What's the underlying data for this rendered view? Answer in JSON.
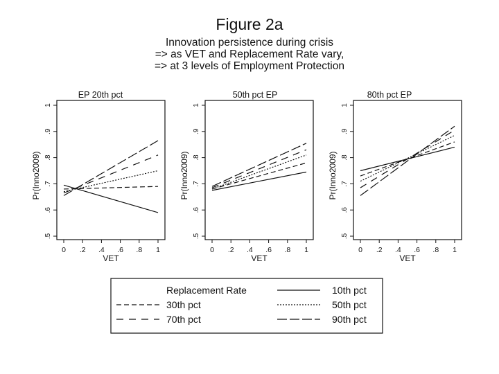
{
  "figure": {
    "title": "Figure 2a",
    "subtitle": [
      "Innovation persistence during crisis",
      "=> as VET and Replacement Rate vary,",
      "=> at 3 levels of Employment Protection"
    ]
  },
  "chart_data": [
    {
      "type": "line",
      "title": "EP 20th pct",
      "xlabel": "VET",
      "ylabel": "Pr(Inno2009)",
      "xlim": [
        0,
        1
      ],
      "ylim": [
        0.5,
        1
      ],
      "xticks": [
        "0",
        ".2",
        ".4",
        ".6",
        ".8",
        "1"
      ],
      "yticks": [
        ".5",
        ".6",
        ".7",
        ".8",
        ".9",
        "1"
      ],
      "x": [
        0,
        1
      ],
      "series": [
        {
          "name": "10th pct",
          "values": [
            0.695,
            0.59
          ]
        },
        {
          "name": "30th pct",
          "values": [
            0.68,
            0.69
          ]
        },
        {
          "name": "50th pct",
          "values": [
            0.67,
            0.75
          ]
        },
        {
          "name": "70th pct",
          "values": [
            0.665,
            0.81
          ]
        },
        {
          "name": "90th pct",
          "values": [
            0.655,
            0.865
          ]
        }
      ]
    },
    {
      "type": "line",
      "title": "50th pct EP",
      "xlabel": "VET",
      "ylabel": "Pr(Inno2009)",
      "xlim": [
        0,
        1
      ],
      "ylim": [
        0.5,
        1
      ],
      "xticks": [
        "0",
        ".2",
        ".4",
        ".6",
        ".8",
        "1"
      ],
      "yticks": [
        ".5",
        ".6",
        ".7",
        ".8",
        ".9",
        "1"
      ],
      "x": [
        0,
        1
      ],
      "series": [
        {
          "name": "10th pct",
          "values": [
            0.675,
            0.745
          ]
        },
        {
          "name": "30th pct",
          "values": [
            0.68,
            0.78
          ]
        },
        {
          "name": "50th pct",
          "values": [
            0.68,
            0.81
          ]
        },
        {
          "name": "70th pct",
          "values": [
            0.685,
            0.83
          ]
        },
        {
          "name": "90th pct",
          "values": [
            0.69,
            0.855
          ]
        }
      ]
    },
    {
      "type": "line",
      "title": "80th pct EP",
      "xlabel": "VET",
      "ylabel": "Pr(Inno2009)",
      "xlim": [
        0,
        1
      ],
      "ylim": [
        0.5,
        1
      ],
      "xticks": [
        "0",
        ".2",
        ".4",
        ".6",
        ".8",
        "1"
      ],
      "yticks": [
        ".5",
        ".6",
        ".7",
        ".8",
        ".9",
        "1"
      ],
      "x": [
        0,
        1
      ],
      "series": [
        {
          "name": "10th pct",
          "values": [
            0.75,
            0.84
          ]
        },
        {
          "name": "30th pct",
          "values": [
            0.73,
            0.86
          ]
        },
        {
          "name": "50th pct",
          "values": [
            0.71,
            0.885
          ]
        },
        {
          "name": "70th pct",
          "values": [
            0.685,
            0.905
          ]
        },
        {
          "name": "90th pct",
          "values": [
            0.655,
            0.92
          ]
        }
      ]
    }
  ],
  "legend": {
    "title": "Replacement Rate",
    "entries": [
      "10th pct",
      "30th pct",
      "50th pct",
      "70th pct",
      "90th pct"
    ]
  }
}
